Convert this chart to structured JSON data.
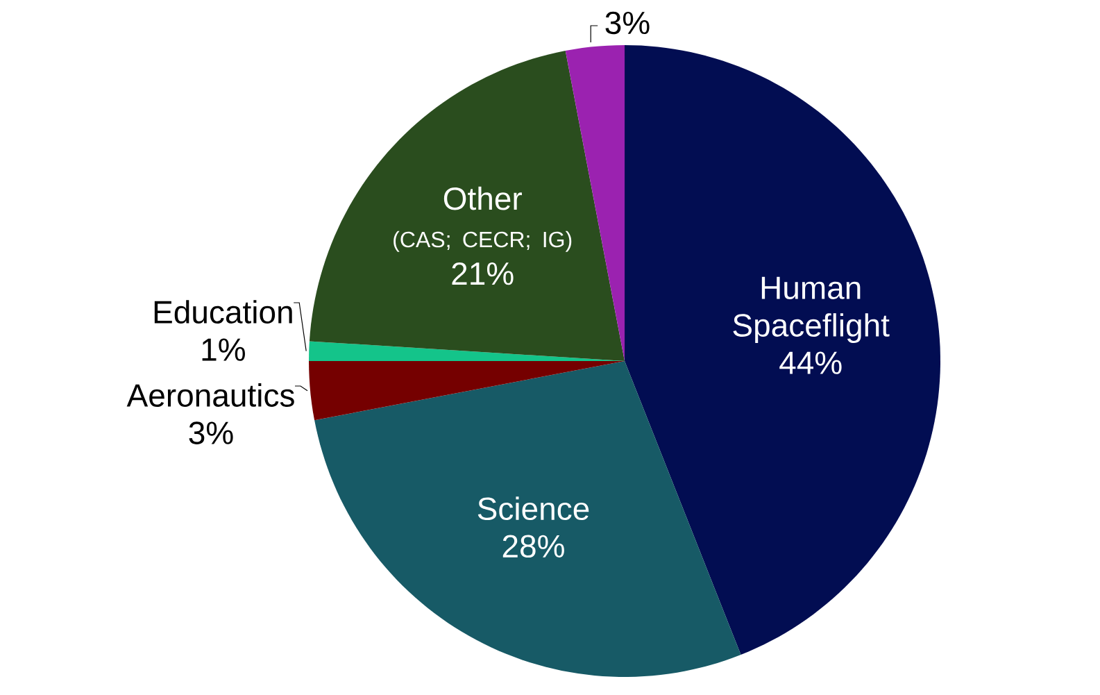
{
  "chart_data": {
    "type": "pie",
    "categories": [
      "Human Spaceflight",
      "Science",
      "Aeronautics",
      "Education",
      "Other",
      null
    ],
    "values": [
      44,
      28,
      3,
      1,
      21,
      3
    ],
    "value_labels": [
      "44%",
      "28%",
      "3%",
      "1%",
      "21%",
      "3%"
    ],
    "colors": [
      "#020d52",
      "#175a66",
      "#750000",
      "#14c48a",
      "#2a4d1e",
      "#9b22b0"
    ],
    "annotations": [
      "(CAS; CECR; IG)"
    ]
  }
}
